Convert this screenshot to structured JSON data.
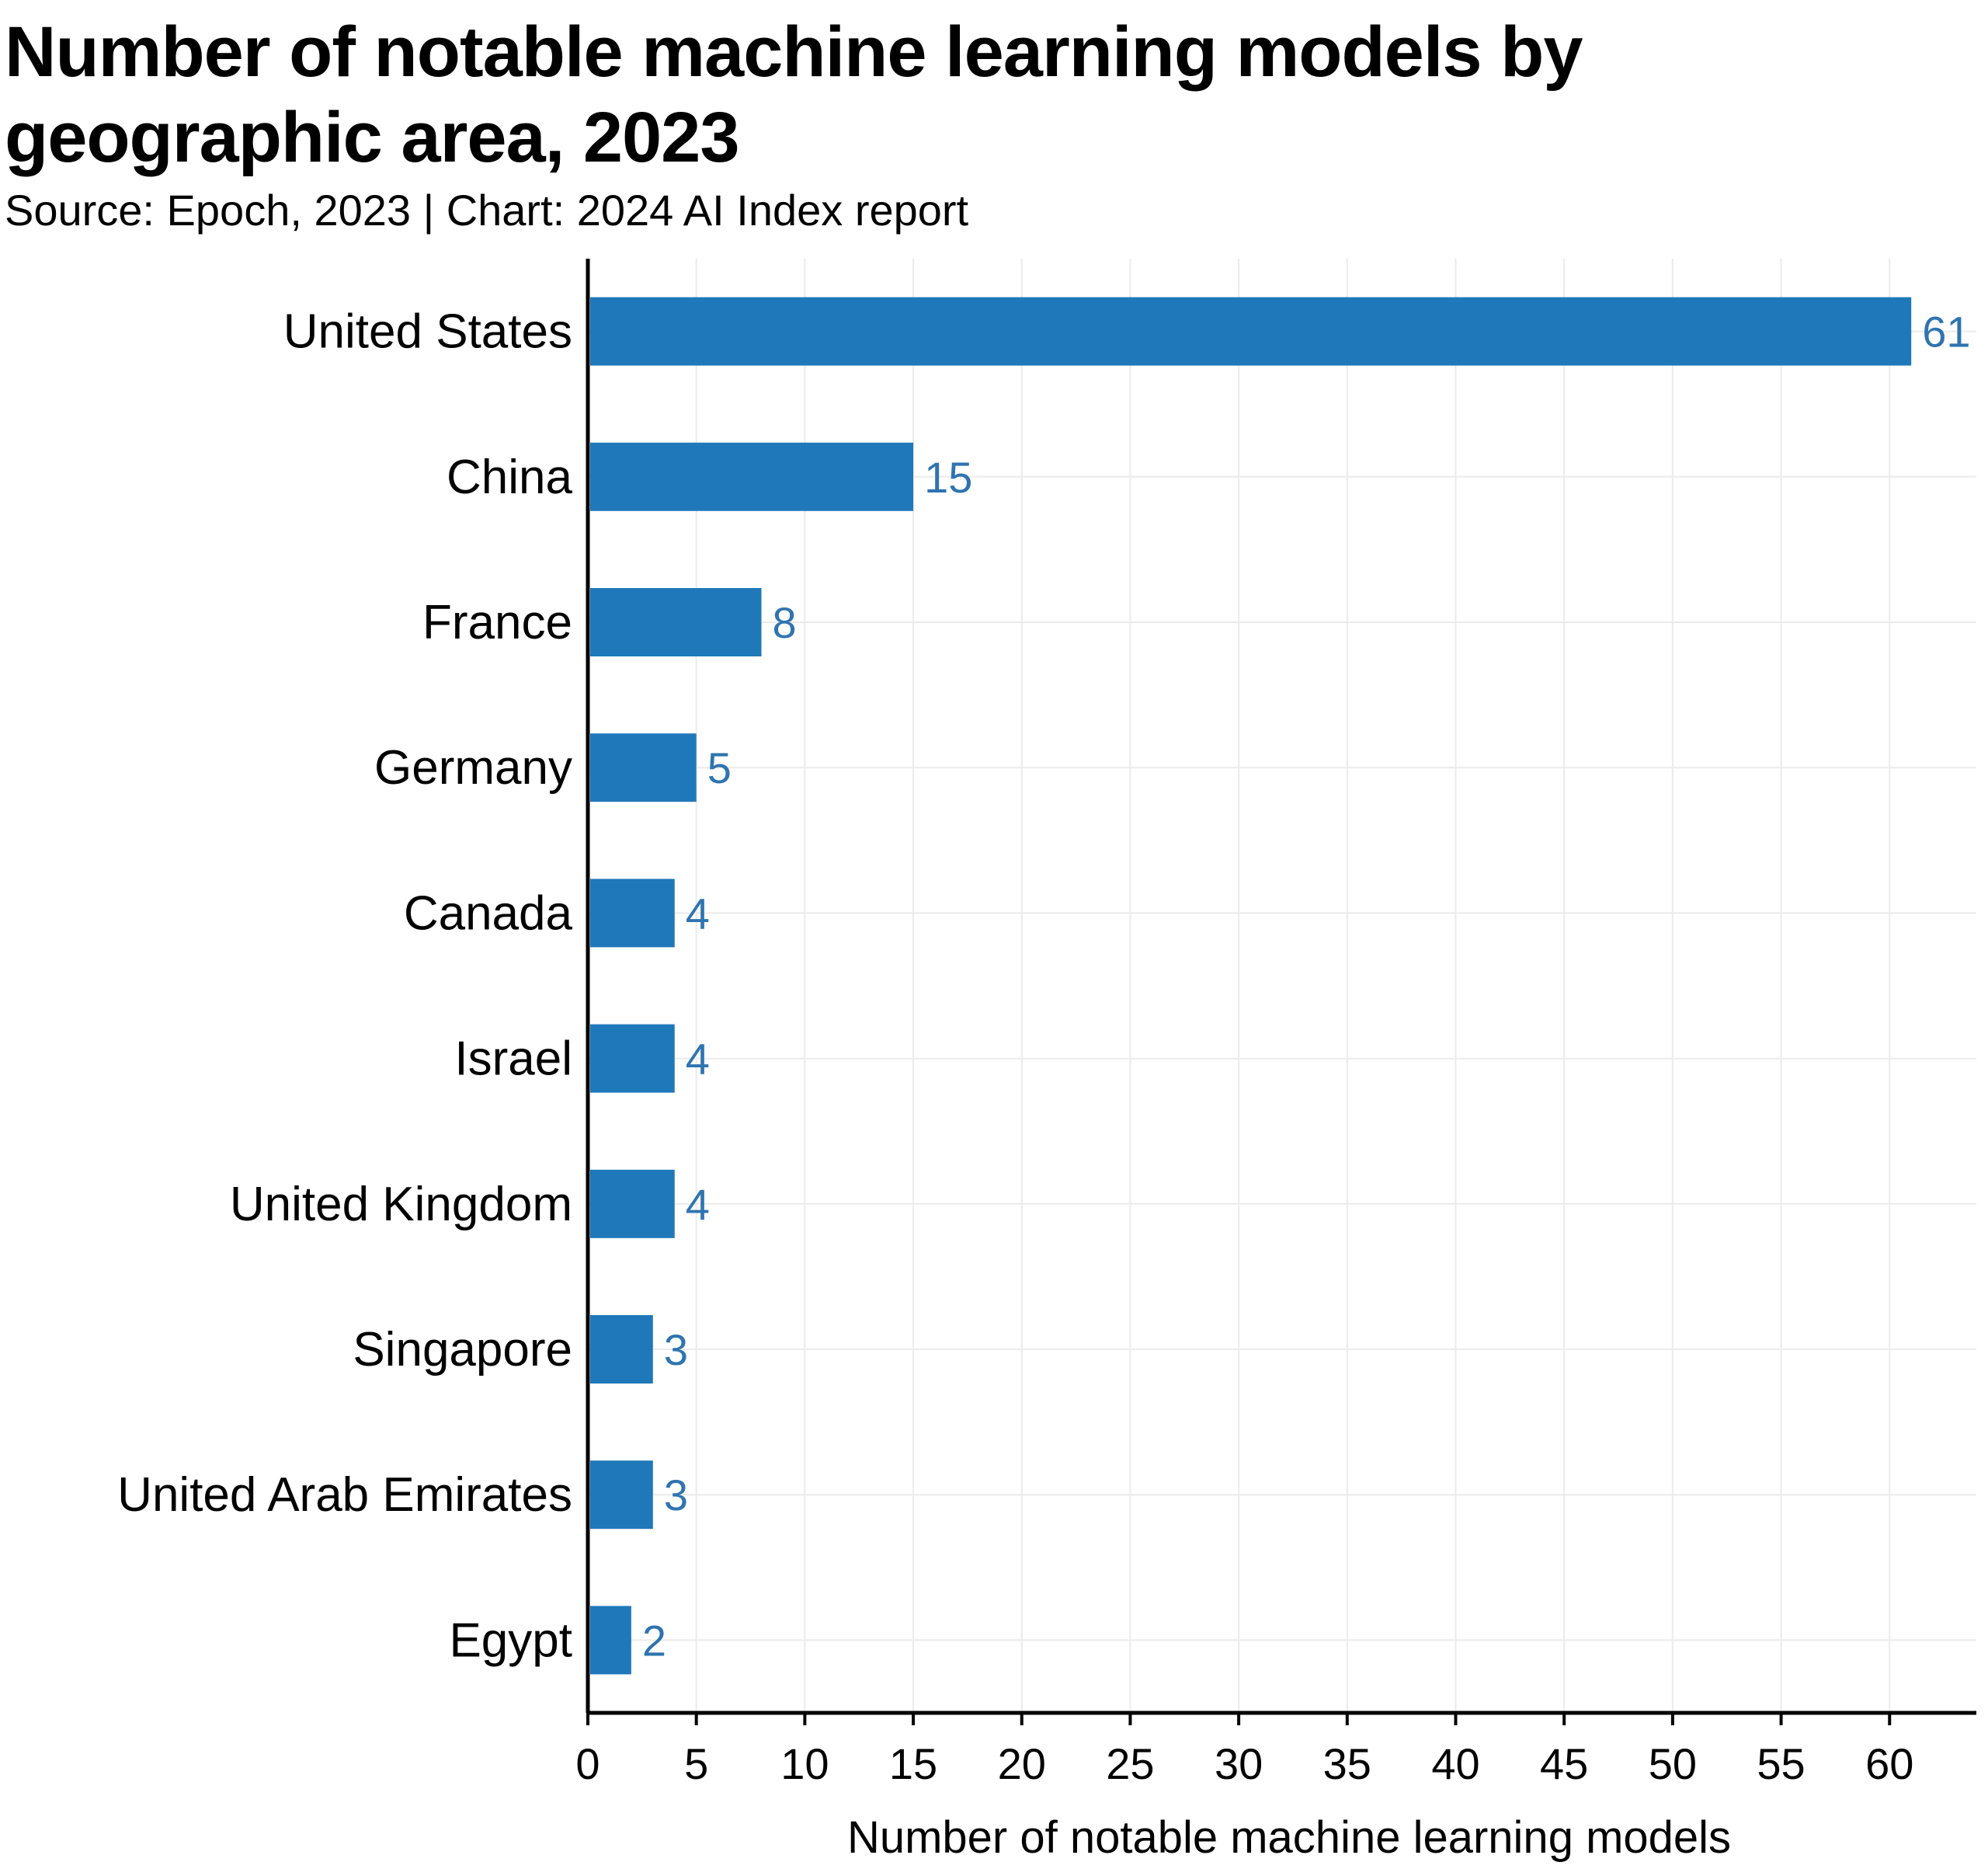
{
  "chart_data": {
    "type": "bar",
    "orientation": "horizontal",
    "title": "Number of notable machine learning models by geographic area, 2023",
    "subtitle": "Source: Epoch, 2023 | Chart: 2024 AI Index report",
    "xlabel": "Number of notable machine learning models",
    "ylabel": "",
    "categories": [
      "United States",
      "China",
      "France",
      "Germany",
      "Canada",
      "Israel",
      "United Kingdom",
      "Singapore",
      "United Arab Emirates",
      "Egypt"
    ],
    "values": [
      61,
      15,
      8,
      5,
      4,
      4,
      4,
      3,
      3,
      2
    ],
    "xlim": [
      0,
      64
    ],
    "xticks": [
      0,
      5,
      10,
      15,
      20,
      25,
      30,
      35,
      40,
      45,
      50,
      55,
      60
    ],
    "grid": true,
    "data_labels": true,
    "legend": "none",
    "colors": {
      "bar": "#1f78b9",
      "label": "#2f74b0",
      "grid": "#ebebeb",
      "axis": "#000000",
      "text": "#000000"
    }
  }
}
